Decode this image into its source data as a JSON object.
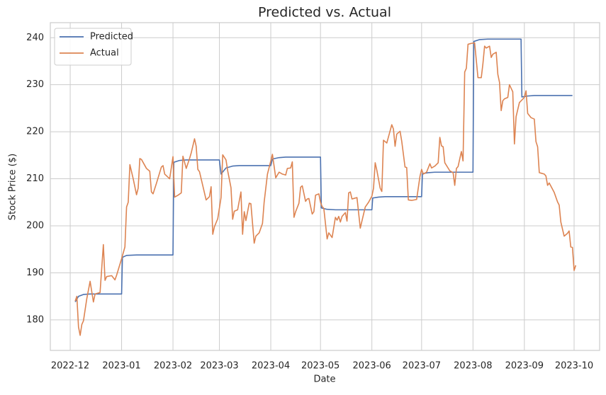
{
  "chart_data": {
    "type": "line",
    "title": "Predicted vs. Actual",
    "x_label": "Date",
    "y_label": "Stock Price ($)",
    "xlim": [
      -12,
      319.4
    ],
    "xticks": [
      {
        "value": 0,
        "label": "2022-12"
      },
      {
        "value": 31,
        "label": "2023-01"
      },
      {
        "value": 62,
        "label": "2023-02"
      },
      {
        "value": 90,
        "label": "2023-03"
      },
      {
        "value": 121,
        "label": "2023-04"
      },
      {
        "value": 151,
        "label": "2023-05"
      },
      {
        "value": 182,
        "label": "2023-06"
      },
      {
        "value": 212,
        "label": "2023-07"
      },
      {
        "value": 243,
        "label": "2023-08"
      },
      {
        "value": 274,
        "label": "2023-09"
      },
      {
        "value": 304,
        "label": "2023-10"
      }
    ],
    "ylim": [
      173.5,
      243.2
    ],
    "yticks": [
      180,
      190,
      200,
      210,
      220,
      230,
      240
    ],
    "grid": true,
    "legend": "upper left",
    "series": [
      {
        "name": "Predicted",
        "color": "#4c72b0",
        "x": [
          3,
          5,
          8,
          12,
          31,
          31.5,
          34,
          40,
          62,
          62.5,
          66,
          70,
          90,
          91,
          94,
          98,
          102,
          121,
          122,
          126,
          130,
          151,
          151.5,
          155,
          160,
          182,
          182.5,
          186,
          190,
          212,
          212.5,
          216,
          220,
          243,
          243.5,
          247,
          252,
          272,
          272.5,
          276,
          280,
          303
        ],
        "values": [
          183.8,
          185,
          185.4,
          185.5,
          185.5,
          193.3,
          193.7,
          193.8,
          193.8,
          213.5,
          213.9,
          214,
          214,
          211,
          212.3,
          212.7,
          212.8,
          212.8,
          214.2,
          214.5,
          214.6,
          214.6,
          203.8,
          203.5,
          203.4,
          203.4,
          205.9,
          206.1,
          206.2,
          206.2,
          211.1,
          211.3,
          211.4,
          211.4,
          239.2,
          239.6,
          239.7,
          239.7,
          227.4,
          227.6,
          227.7,
          227.7
        ]
      },
      {
        "name": "Actual",
        "color": "#dd8452",
        "x": [
          3,
          4,
          5,
          6,
          7,
          8,
          10,
          12,
          14,
          15,
          18,
          20,
          21,
          22,
          25,
          27,
          28,
          31,
          33,
          34,
          35,
          36,
          38,
          40,
          41,
          42,
          43,
          46,
          48,
          49,
          50,
          52,
          55,
          56,
          57,
          60,
          62,
          63,
          65,
          67,
          68,
          70,
          72,
          73,
          75,
          76,
          77,
          78,
          82,
          84,
          85,
          86,
          87,
          89,
          91,
          92,
          94,
          95,
          97,
          98,
          99,
          101,
          103,
          104,
          105,
          106,
          108,
          109,
          111,
          112,
          114,
          116,
          117,
          119,
          122,
          124,
          126,
          128,
          130,
          131,
          133,
          134,
          135,
          136,
          138,
          139,
          140,
          142,
          143,
          144,
          146,
          147,
          148,
          150,
          151,
          152,
          153,
          155,
          156,
          158,
          160,
          161,
          162,
          163,
          164,
          166,
          167,
          168,
          169,
          170,
          171,
          173,
          175,
          176,
          178,
          180,
          182,
          183,
          184,
          185,
          187,
          188,
          189,
          191,
          194,
          195,
          196,
          197,
          199,
          200,
          202,
          203,
          204,
          206,
          209,
          211,
          212,
          213,
          215,
          217,
          218,
          220,
          222,
          223,
          224,
          225,
          226,
          229,
          231,
          232,
          233,
          234,
          236,
          237,
          238,
          239,
          240,
          242,
          244,
          246,
          248,
          249,
          250,
          251,
          253,
          254,
          255,
          257,
          258,
          259,
          260,
          261,
          262,
          264,
          265,
          267,
          268,
          269,
          271,
          274,
          275,
          276,
          278,
          280,
          281,
          282,
          283,
          284,
          286,
          287,
          288,
          289,
          292,
          294,
          295,
          296,
          298,
          300,
          301,
          302,
          303,
          304,
          305
        ],
        "values": [
          184,
          185,
          178.5,
          176.7,
          179,
          179.8,
          184.5,
          188.2,
          183.8,
          185.5,
          185.8,
          196,
          188.4,
          189.2,
          189.4,
          188.5,
          189.5,
          193,
          195.5,
          204,
          205,
          213,
          210,
          206.6,
          208,
          214.3,
          214.1,
          212.2,
          211.6,
          207.2,
          206.8,
          209,
          212.5,
          212.8,
          211,
          210,
          214.7,
          206.1,
          206.5,
          207,
          214.8,
          212.2,
          214.3,
          215.5,
          218.5,
          216.9,
          212,
          211.5,
          205.5,
          206.2,
          208.3,
          198.2,
          199.8,
          201.5,
          206,
          215.1,
          214,
          211.7,
          208.1,
          201.4,
          203.1,
          203.4,
          207.2,
          198.2,
          203,
          201.1,
          204.8,
          204.7,
          196.3,
          197.8,
          198.5,
          200.5,
          205,
          211,
          215.2,
          210.2,
          211.4,
          211,
          210.8,
          212.2,
          212.3,
          213.6,
          201.8,
          203,
          204.8,
          208.2,
          208.5,
          205.2,
          205.7,
          205.8,
          202.5,
          203,
          206.5,
          206.8,
          205,
          204.1,
          203.7,
          197.2,
          198.5,
          197.5,
          201.8,
          201.2,
          202,
          200.8,
          202,
          202.8,
          201,
          207,
          207.2,
          205.7,
          205.8,
          206,
          199.5,
          201,
          204,
          205,
          206.3,
          208,
          213.4,
          211.8,
          208,
          207.3,
          218.2,
          217.6,
          221.5,
          220.6,
          216.9,
          219.5,
          220.1,
          218,
          212.5,
          212.4,
          205.5,
          205.4,
          205.6,
          210.5,
          212,
          211,
          211.4,
          213.2,
          212.3,
          212.7,
          213.4,
          218.8,
          217,
          216.8,
          213.4,
          211.7,
          211.3,
          208.6,
          212.2,
          212.6,
          215.8,
          213.8,
          232.7,
          233.5,
          238.6,
          238.8,
          238.9,
          231.5,
          231.5,
          234.5,
          238.2,
          237.8,
          238.2,
          235.8,
          236.5,
          236.9,
          232.2,
          230.5,
          224.5,
          226.6,
          227,
          227.3,
          230,
          228.5,
          217.4,
          223.2,
          226.2,
          227.3,
          228.7,
          223.9,
          223,
          222.7,
          217.9,
          216.8,
          211.3,
          211.2,
          211,
          210.6,
          208.6,
          209.1,
          207.1,
          205.1,
          204.4,
          200.8,
          197.8,
          198.4,
          198.9,
          195.5,
          195.4,
          190.5,
          191.6
        ]
      }
    ]
  }
}
